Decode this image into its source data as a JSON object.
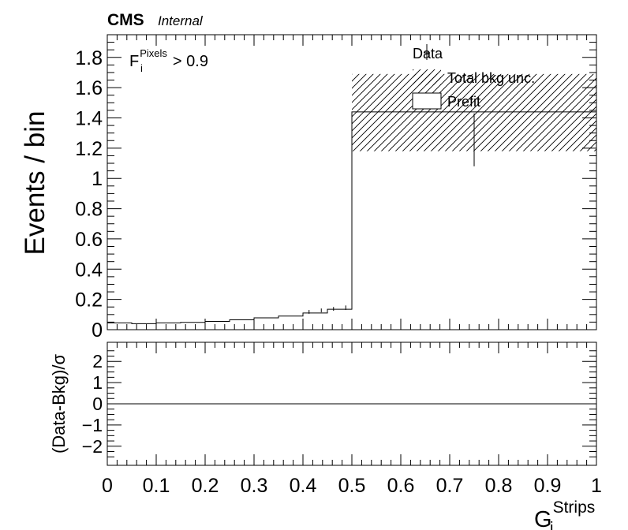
{
  "header": {
    "experiment": "CMS",
    "status": "Internal"
  },
  "chart_data": {
    "type": "histogram",
    "main": {
      "ylabel": "Events / bin",
      "ylim": [
        0,
        1.95
      ],
      "yticks": [
        0,
        0.2,
        0.4,
        0.6,
        0.8,
        1,
        1.2,
        1.4,
        1.6,
        1.8
      ],
      "ytick_labels": [
        "0",
        "0.2",
        "0.4",
        "0.6",
        "0.8",
        "1",
        "1.2",
        "1.4",
        "1.6",
        "1.8"
      ],
      "xlim": [
        0,
        1
      ],
      "annotation": {
        "base": "F",
        "sub": "i",
        "sup": "Pixels",
        "suffix": "> 0.9"
      },
      "legend": {
        "placement": "top-right",
        "entries": [
          {
            "label": "Data",
            "style": "marker"
          },
          {
            "label": "Total bkg unc.",
            "style": "hatch"
          },
          {
            "label": "Prefit",
            "style": "box"
          }
        ]
      },
      "prefit_steps": [
        {
          "x0": 0.0,
          "x1": 0.05,
          "y": 0.045
        },
        {
          "x0": 0.05,
          "x1": 0.1,
          "y": 0.04
        },
        {
          "x0": 0.1,
          "x1": 0.15,
          "y": 0.045
        },
        {
          "x0": 0.15,
          "x1": 0.2,
          "y": 0.048
        },
        {
          "x0": 0.2,
          "x1": 0.25,
          "y": 0.055
        },
        {
          "x0": 0.25,
          "x1": 0.3,
          "y": 0.065
        },
        {
          "x0": 0.3,
          "x1": 0.35,
          "y": 0.078
        },
        {
          "x0": 0.35,
          "x1": 0.4,
          "y": 0.09
        },
        {
          "x0": 0.4,
          "x1": 0.45,
          "y": 0.11
        },
        {
          "x0": 0.45,
          "x1": 0.5,
          "y": 0.135
        },
        {
          "x0": 0.5,
          "x1": 1.0,
          "y": 1.44
        }
      ],
      "bkg_unc_band": [
        {
          "x0": 0.5,
          "x1": 1.0,
          "ylo": 1.18,
          "yhi": 1.69
        }
      ],
      "data_points": [
        {
          "x": 0.75,
          "y": 1.43,
          "ylo": 1.08,
          "yhi": 1.43
        }
      ],
      "small_error_ticks": [
        {
          "x": 0.4125,
          "ylo": 0.105,
          "yhi": 0.13
        },
        {
          "x": 0.4375,
          "ylo": 0.115,
          "yhi": 0.14
        },
        {
          "x": 0.4625,
          "ylo": 0.125,
          "yhi": 0.15
        },
        {
          "x": 0.4875,
          "ylo": 0.13,
          "yhi": 0.16
        }
      ]
    },
    "ratio": {
      "ylabel": "(Data-Bkg)/σ",
      "ylim": [
        -2.9,
        2.9
      ],
      "yticks": [
        -2,
        -1,
        0,
        1,
        2
      ],
      "ytick_labels": [
        "−2",
        "−1",
        "0",
        "1",
        "2"
      ],
      "reference_line": 0
    },
    "xaxis": {
      "xticks": [
        0,
        0.1,
        0.2,
        0.3,
        0.4,
        0.5,
        0.6,
        0.7,
        0.8,
        0.9,
        1
      ],
      "xtick_labels": [
        "0",
        "0.1",
        "0.2",
        "0.3",
        "0.4",
        "0.5",
        "0.6",
        "0.7",
        "0.8",
        "0.9",
        "1"
      ],
      "label": {
        "base": "G",
        "sub": "i",
        "sup": "Strips"
      }
    }
  }
}
